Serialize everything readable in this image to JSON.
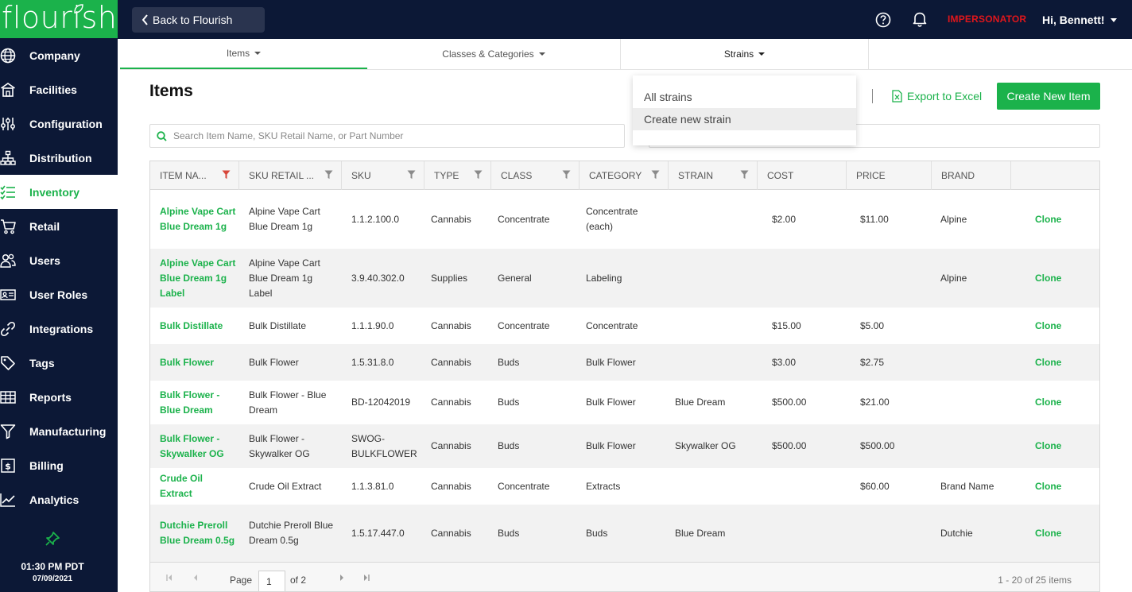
{
  "brand": {
    "logo_text": "flourish"
  },
  "sidebar": {
    "items": [
      {
        "label": "Company",
        "icon": "globe-icon",
        "active": false
      },
      {
        "label": "Facilities",
        "icon": "building-icon",
        "active": false
      },
      {
        "label": "Configuration",
        "icon": "sliders-icon",
        "active": false
      },
      {
        "label": "Distribution",
        "icon": "sitemap-icon",
        "active": false
      },
      {
        "label": "Inventory",
        "icon": "checklist-icon",
        "active": true
      },
      {
        "label": "Retail",
        "icon": "cart-icon",
        "active": false
      },
      {
        "label": "Users",
        "icon": "users-icon",
        "active": false
      },
      {
        "label": "User Roles",
        "icon": "id-card-icon",
        "active": false
      },
      {
        "label": "Integrations",
        "icon": "link-icon",
        "active": false
      },
      {
        "label": "Tags",
        "icon": "tag-icon",
        "active": false
      },
      {
        "label": "Reports",
        "icon": "table-icon",
        "active": false
      },
      {
        "label": "Manufacturing",
        "icon": "funnel-icon",
        "active": false
      },
      {
        "label": "Billing",
        "icon": "bill-icon",
        "active": false
      },
      {
        "label": "Analytics",
        "icon": "chart-line-icon",
        "active": false
      }
    ],
    "time": "01:30 PM PDT",
    "date": "07/09/2021"
  },
  "topbar": {
    "back_label": "Back to Flourish",
    "impersonator": "IMPERSONATOR",
    "greeting": "Hi, Bennett!"
  },
  "subtabs": [
    {
      "label": "Items",
      "active": true
    },
    {
      "label": "Classes & Categories",
      "active": false
    },
    {
      "label": "Strains",
      "active": false
    }
  ],
  "page": {
    "title": "Items",
    "export_label": "Export to Excel",
    "create_label": "Create New Item",
    "search_placeholder": "Search Item Name, SKU Retail Name, or Part Number"
  },
  "strains_dropdown": {
    "items": [
      "All strains",
      "Create new strain"
    ]
  },
  "table": {
    "columns": [
      "ITEM NA...",
      "SKU RETAIL ...",
      "SKU",
      "TYPE",
      "CLASS",
      "CATEGORY",
      "STRAIN",
      "COST",
      "PRICE",
      "BRAND"
    ],
    "clone_label": "Clone",
    "rows": [
      {
        "item": "Alpine Vape Cart Blue Dream 1g",
        "sku_retail": "Alpine Vape Cart Blue Dream 1g",
        "sku": "1.1.2.100.0",
        "type": "Cannabis",
        "class": "Concentrate",
        "category": "Concentrate (each)",
        "strain": "",
        "cost": "$2.00",
        "price": "$11.00",
        "brand": "Alpine"
      },
      {
        "item": "Alpine Vape Cart Blue Dream 1g Label",
        "sku_retail": "Alpine Vape Cart Blue Dream 1g Label",
        "sku": "3.9.40.302.0",
        "type": "Supplies",
        "class": "General",
        "category": "Labeling",
        "strain": "",
        "cost": "",
        "price": "",
        "brand": "Alpine"
      },
      {
        "item": "Bulk Distillate",
        "sku_retail": "Bulk Distillate",
        "sku": "1.1.1.90.0",
        "type": "Cannabis",
        "class": "Concentrate",
        "category": "Concentrate",
        "strain": "",
        "cost": "$15.00",
        "price": "$5.00",
        "brand": ""
      },
      {
        "item": "Bulk Flower",
        "sku_retail": "Bulk Flower",
        "sku": "1.5.31.8.0",
        "type": "Cannabis",
        "class": "Buds",
        "category": "Bulk Flower",
        "strain": "",
        "cost": "$3.00",
        "price": "$2.75",
        "brand": ""
      },
      {
        "item": "Bulk Flower - Blue Dream",
        "sku_retail": "Bulk Flower - Blue Dream",
        "sku": "BD-12042019",
        "type": "Cannabis",
        "class": "Buds",
        "category": "Bulk Flower",
        "strain": "Blue Dream",
        "cost": "$500.00",
        "price": "$21.00",
        "brand": ""
      },
      {
        "item": "Bulk Flower - Skywalker OG",
        "sku_retail": "Bulk Flower - Skywalker OG",
        "sku": "SWOG-BULKFLOWER",
        "type": "Cannabis",
        "class": "Buds",
        "category": "Bulk Flower",
        "strain": "Skywalker OG",
        "cost": "$500.00",
        "price": "$500.00",
        "brand": ""
      },
      {
        "item": "Crude Oil Extract",
        "sku_retail": "Crude Oil Extract",
        "sku": "1.1.3.81.0",
        "type": "Cannabis",
        "class": "Concentrate",
        "category": "Extracts",
        "strain": "",
        "cost": "",
        "price": "$60.00",
        "brand": "Brand Name"
      },
      {
        "item": "Dutchie Preroll Blue Dream 0.5g",
        "sku_retail": "Dutchie Preroll Blue Dream 0.5g",
        "sku": "1.5.17.447.0",
        "type": "Cannabis",
        "class": "Buds",
        "category": "Buds",
        "strain": "Blue Dream",
        "cost": "",
        "price": "",
        "brand": "Dutchie"
      }
    ]
  },
  "pager": {
    "page_label": "Page",
    "page_value": "1",
    "of_label": "of 2",
    "count_label": "1 - 20 of 25 items"
  },
  "colors": {
    "brand_green": "#1bb24b",
    "navy": "#0c1836",
    "impersonator_red": "#e0161b"
  }
}
